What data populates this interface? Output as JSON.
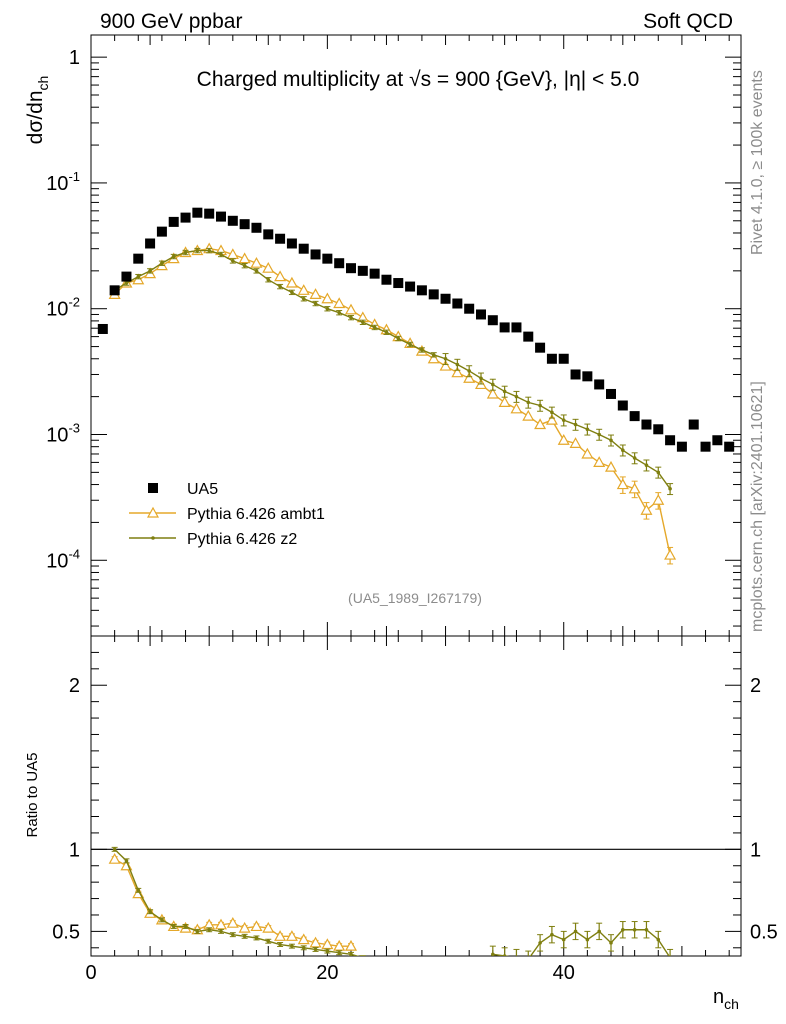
{
  "header": {
    "left": "900 GeV ppbar",
    "right": "Soft QCD"
  },
  "side_labels": {
    "top": "Rivet 4.1.0, ≥ 100k events",
    "bottom": "mcplots.cern.ch [arXiv:2401.10621]"
  },
  "colors": {
    "ua5": "#000000",
    "ambt1": "#e5a82a",
    "z2": "#7f7f10"
  },
  "chart_data": [
    {
      "type": "scatter",
      "panel": "main",
      "title": "Charged multiplicity at √s = 900 {GeV}, |η| < 5.0",
      "ylabel": "dσ/dn_ch",
      "xlabel": "n_ch",
      "yscale": "log",
      "xlim": [
        0,
        55
      ],
      "ylim": [
        2.5e-05,
        1.5
      ],
      "ytick_labels": [
        "1",
        "10^-1",
        "10^-2",
        "10^-3",
        "10^-4"
      ],
      "ref_id": "(UA5_1989_I267179)",
      "legend": [
        "UA5",
        "Pythia 6.426 ambt1",
        "Pythia 6.426 z2"
      ],
      "series": [
        {
          "name": "UA5",
          "marker": "square",
          "x": [
            1,
            2,
            3,
            4,
            5,
            6,
            7,
            8,
            9,
            10,
            11,
            12,
            13,
            14,
            15,
            16,
            17,
            18,
            19,
            20,
            21,
            22,
            23,
            24,
            25,
            26,
            27,
            28,
            29,
            30,
            31,
            32,
            33,
            34,
            35,
            36,
            37,
            38,
            39,
            40,
            41,
            42,
            43,
            44,
            45,
            46,
            47,
            48,
            49,
            50,
            51,
            52,
            53,
            54
          ],
          "y": [
            0.0069,
            0.014,
            0.018,
            0.025,
            0.033,
            0.041,
            0.049,
            0.053,
            0.058,
            0.057,
            0.054,
            0.05,
            0.047,
            0.044,
            0.039,
            0.036,
            0.033,
            0.03,
            0.027,
            0.025,
            0.023,
            0.021,
            0.02,
            0.019,
            0.017,
            0.016,
            0.015,
            0.014,
            0.013,
            0.012,
            0.011,
            0.01,
            0.009,
            0.0081,
            0.0071,
            0.0071,
            0.006,
            0.0049,
            0.004,
            0.004,
            0.003,
            0.0029,
            0.0025,
            0.0021,
            0.0017,
            0.0014,
            0.0012,
            0.0011,
            0.0009,
            0.0008,
            0.0012,
            0.0008,
            0.0009,
            0.0008
          ]
        },
        {
          "name": "Pythia 6.426 ambt1",
          "marker": "triangle",
          "x": [
            2,
            3,
            4,
            5,
            6,
            7,
            8,
            9,
            10,
            11,
            12,
            13,
            14,
            15,
            16,
            17,
            18,
            19,
            20,
            21,
            22,
            23,
            24,
            25,
            26,
            27,
            28,
            29,
            30,
            31,
            32,
            33,
            34,
            35,
            36,
            37,
            38,
            39,
            40,
            41,
            42,
            43,
            44,
            45,
            46,
            47,
            48,
            49
          ],
          "y": [
            0.013,
            0.016,
            0.017,
            0.019,
            0.022,
            0.025,
            0.028,
            0.029,
            0.03,
            0.029,
            0.027,
            0.025,
            0.023,
            0.021,
            0.018,
            0.016,
            0.014,
            0.013,
            0.012,
            0.011,
            0.0098,
            0.0085,
            0.0075,
            0.0068,
            0.006,
            0.0053,
            0.0046,
            0.004,
            0.0035,
            0.0031,
            0.0028,
            0.0025,
            0.0021,
            0.0018,
            0.0016,
            0.0014,
            0.0012,
            0.0013,
            0.0009,
            0.00085,
            0.0007,
            0.0006,
            0.00055,
            0.0004,
            0.00037,
            0.00025,
            0.0003,
            0.00011
          ]
        },
        {
          "name": "Pythia 6.426 z2",
          "marker": "dot",
          "x": [
            2,
            3,
            4,
            5,
            6,
            7,
            8,
            9,
            10,
            11,
            12,
            13,
            14,
            15,
            16,
            17,
            18,
            19,
            20,
            21,
            22,
            23,
            24,
            25,
            26,
            27,
            28,
            29,
            30,
            31,
            32,
            33,
            34,
            35,
            36,
            37,
            38,
            39,
            40,
            41,
            42,
            43,
            44,
            45,
            46,
            47,
            48,
            49
          ],
          "y": [
            0.014,
            0.016,
            0.018,
            0.02,
            0.023,
            0.026,
            0.028,
            0.029,
            0.029,
            0.027,
            0.024,
            0.022,
            0.02,
            0.017,
            0.015,
            0.0135,
            0.012,
            0.011,
            0.01,
            0.0093,
            0.0085,
            0.0078,
            0.0071,
            0.0065,
            0.0058,
            0.0052,
            0.0047,
            0.0043,
            0.004,
            0.0036,
            0.0032,
            0.0028,
            0.0025,
            0.0022,
            0.002,
            0.0018,
            0.0017,
            0.0015,
            0.0013,
            0.0012,
            0.0011,
            0.001,
            0.0009,
            0.00075,
            0.00065,
            0.00057,
            0.0005,
            0.00037
          ]
        }
      ]
    },
    {
      "type": "line",
      "panel": "ratio",
      "ylabel": "Ratio to UA5",
      "xlabel": "n_ch",
      "xlim": [
        0,
        55
      ],
      "ylim": [
        0.35,
        2.3
      ],
      "ytick_labels": [
        "0.5",
        "1",
        "2"
      ],
      "xtick_labels": [
        "0",
        "20",
        "40"
      ],
      "reference": 1,
      "series": [
        {
          "name": "Pythia 6.426 ambt1",
          "x": [
            2,
            3,
            4,
            5,
            6,
            7,
            8,
            9,
            10,
            11,
            12,
            13,
            14,
            15,
            16,
            17,
            18,
            19,
            20,
            21,
            22
          ],
          "y": [
            0.94,
            0.9,
            0.73,
            0.61,
            0.57,
            0.53,
            0.52,
            0.51,
            0.54,
            0.54,
            0.55,
            0.52,
            0.53,
            0.52,
            0.47,
            0.47,
            0.45,
            0.43,
            0.42,
            0.41,
            0.41
          ]
        },
        {
          "name": "Pythia 6.426 z2",
          "x": [
            2,
            3,
            4,
            5,
            6,
            7,
            8,
            9,
            10,
            11,
            12,
            13,
            14,
            15,
            16,
            17,
            18,
            19,
            20,
            21,
            22,
            23,
            34,
            35,
            36,
            37,
            38,
            39,
            40,
            41,
            42,
            43,
            44,
            45,
            46,
            47,
            48,
            49
          ],
          "y": [
            1.0,
            0.93,
            0.75,
            0.62,
            0.57,
            0.53,
            0.53,
            0.5,
            0.51,
            0.5,
            0.48,
            0.47,
            0.46,
            0.44,
            0.42,
            0.41,
            0.4,
            0.39,
            0.38,
            0.37,
            0.36,
            0.34,
            0.36,
            0.35,
            0.34,
            0.33,
            0.43,
            0.48,
            0.45,
            0.5,
            0.45,
            0.5,
            0.43,
            0.51,
            0.51,
            0.51,
            0.45,
            0.34
          ]
        }
      ]
    }
  ]
}
